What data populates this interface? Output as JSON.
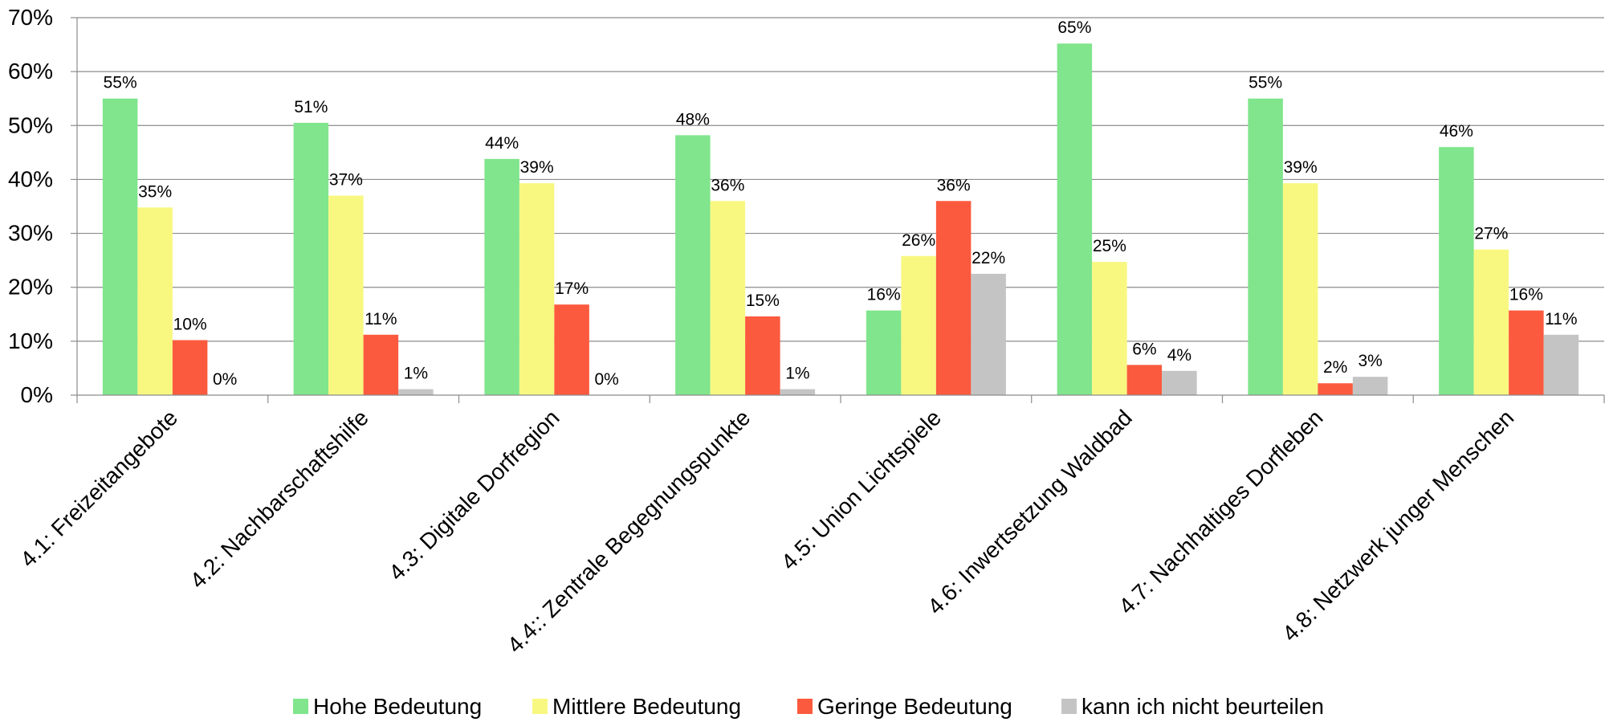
{
  "chart_data": {
    "type": "bar",
    "title": "",
    "xlabel": "",
    "ylabel": "",
    "ylim": [
      0,
      0.7
    ],
    "y_ticks": [
      "0%",
      "10%",
      "20%",
      "30%",
      "40%",
      "50%",
      "60%",
      "70%"
    ],
    "y_tick_values": [
      0,
      0.1,
      0.2,
      0.3,
      0.4,
      0.5,
      0.6,
      0.7
    ],
    "grid": "horizontal",
    "legend_position": "bottom",
    "categories": [
      "4.1: Freizeitangebote",
      "4.2: Nachbarschaftshilfe",
      "4.3: Digitale Dorfregion",
      "4.4:: Zentrale Begegnungspunkte",
      "4.5: Union Lichtspiele",
      "4.6: Inwertsetzung Waldbad",
      "4.7: Nachhaltiges Dorfleben",
      "4.8: Netzwerk junger Menschen"
    ],
    "series": [
      {
        "name": "Hohe Bedeutung",
        "color": "#80e58c",
        "values": [
          0.55,
          0.505,
          0.438,
          0.482,
          0.157,
          0.652,
          0.55,
          0.46
        ],
        "labels": [
          "55%",
          "51%",
          "44%",
          "48%",
          "16%",
          "65%",
          "55%",
          "46%"
        ]
      },
      {
        "name": "Mittlere Bedeutung",
        "color": "#f8f881",
        "values": [
          0.348,
          0.37,
          0.393,
          0.36,
          0.258,
          0.247,
          0.393,
          0.27
        ],
        "labels": [
          "35%",
          "37%",
          "39%",
          "36%",
          "26%",
          "25%",
          "39%",
          "27%"
        ]
      },
      {
        "name": "Geringe Bedeutung",
        "color": "#fb5a3e",
        "values": [
          0.102,
          0.112,
          0.168,
          0.146,
          0.36,
          0.056,
          0.022,
          0.157
        ],
        "labels": [
          "10%",
          "11%",
          "17%",
          "15%",
          "36%",
          "6%",
          "2%",
          "16%"
        ]
      },
      {
        "name": "kann ich nicht beurteilen",
        "color": "#c4c4c4",
        "values": [
          0.0,
          0.011,
          0.0,
          0.011,
          0.225,
          0.045,
          0.034,
          0.112
        ],
        "labels": [
          "0%",
          "1%",
          "0%",
          "1%",
          "22%",
          "4%",
          "3%",
          "11%"
        ]
      }
    ]
  }
}
